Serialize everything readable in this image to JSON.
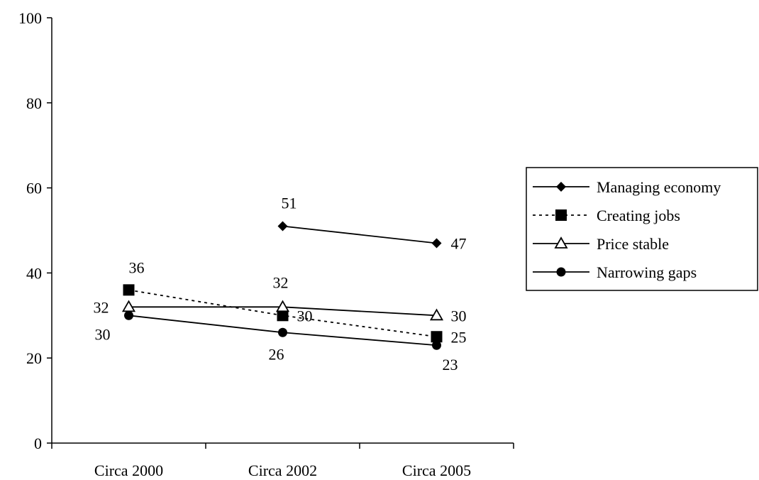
{
  "chart_data": {
    "type": "line",
    "title": "",
    "xlabel": "",
    "ylabel": "",
    "categories": [
      "Circa 2000",
      "Circa 2002",
      "Circa 2005"
    ],
    "ylim": [
      0,
      100
    ],
    "yticks": [
      0,
      20,
      40,
      60,
      80,
      100
    ],
    "grid": false,
    "legend_position": "right",
    "series": [
      {
        "name": "Managing economy",
        "values": [
          null,
          51,
          47
        ],
        "labels": [
          "",
          "51",
          "47"
        ],
        "marker": "diamond",
        "dash": "solid"
      },
      {
        "name": "Creating jobs",
        "values": [
          36,
          30,
          25
        ],
        "labels": [
          "36",
          "30",
          "25"
        ],
        "marker": "square",
        "dash": "dotted"
      },
      {
        "name": "Price stable",
        "values": [
          32,
          32,
          30
        ],
        "labels": [
          "32",
          "32",
          "30"
        ],
        "marker": "triangle-open",
        "dash": "solid"
      },
      {
        "name": "Narrowing gaps",
        "values": [
          30,
          26,
          23
        ],
        "labels": [
          "30",
          "26",
          "23"
        ],
        "marker": "circle",
        "dash": "solid"
      }
    ]
  }
}
